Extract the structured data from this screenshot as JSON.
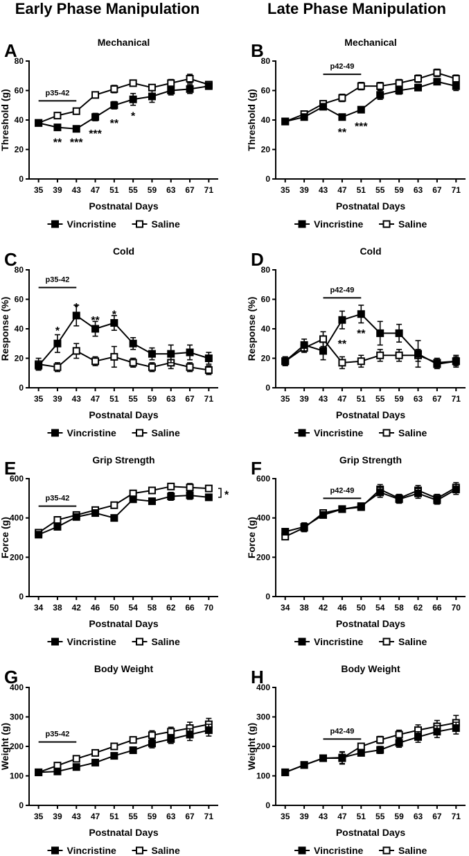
{
  "column_titles": [
    "Early Phase Manipulation",
    "Late Phase Manipulation"
  ],
  "legend": [
    "Vincristine",
    "Saline"
  ],
  "chart_data": [
    {
      "panel": "A",
      "type": "line",
      "title": "Mechanical",
      "xlabel": "Postnatal Days",
      "ylabel": "Threshold (g)",
      "ylim": [
        0,
        80
      ],
      "yticks": [
        0,
        20,
        40,
        60,
        80
      ],
      "x": [
        35,
        39,
        43,
        47,
        51,
        55,
        59,
        63,
        67,
        71
      ],
      "series": [
        {
          "name": "Vincristine",
          "values": [
            38,
            35,
            34,
            42,
            50,
            54,
            56,
            60,
            61,
            63
          ],
          "errors": [
            1.5,
            1.5,
            1.5,
            2.5,
            2.5,
            4,
            4,
            3,
            3,
            2
          ]
        },
        {
          "name": "Saline",
          "values": [
            38,
            43,
            46,
            57,
            61,
            65,
            62,
            65,
            68,
            64
          ],
          "errors": [
            1.5,
            1.5,
            1.5,
            1.5,
            2.5,
            2,
            1.5,
            2.5,
            3,
            2
          ]
        }
      ],
      "injection_label": "p35-42",
      "injection_bar": [
        35,
        43
      ],
      "injection_level": 53,
      "annotations": [
        {
          "x": 39,
          "y": 27,
          "text": "**"
        },
        {
          "x": 43,
          "y": 27,
          "text": "***"
        },
        {
          "x": 47,
          "y": 33,
          "text": "***"
        },
        {
          "x": 51,
          "y": 40,
          "text": "**"
        },
        {
          "x": 55,
          "y": 45,
          "text": "*"
        }
      ]
    },
    {
      "panel": "B",
      "type": "line",
      "title": "Mechanical",
      "xlabel": "Postnatal Days",
      "ylabel": "Threshold (g)",
      "ylim": [
        0,
        80
      ],
      "yticks": [
        0,
        20,
        40,
        60,
        80
      ],
      "x": [
        35,
        39,
        43,
        47,
        51,
        55,
        59,
        63,
        67,
        71
      ],
      "series": [
        {
          "name": "Vincristine",
          "values": [
            39,
            42,
            49,
            42,
            47,
            57,
            60,
            62,
            66,
            63
          ],
          "errors": [
            1.5,
            1.5,
            1.5,
            1.5,
            1.5,
            3,
            2.5,
            2,
            2,
            3
          ]
        },
        {
          "name": "Saline",
          "values": [
            39,
            44,
            51,
            55,
            63,
            63,
            65,
            68,
            72,
            68
          ],
          "errors": [
            1.5,
            1.5,
            2,
            2.5,
            2.5,
            2.5,
            2.5,
            2.5,
            2.5,
            2.5
          ]
        }
      ],
      "injection_label": "p42-49",
      "injection_bar": [
        43,
        51
      ],
      "injection_level": 71,
      "annotations": [
        {
          "x": 47,
          "y": 34,
          "text": "**"
        },
        {
          "x": 51,
          "y": 38,
          "text": "***"
        }
      ]
    },
    {
      "panel": "C",
      "type": "line",
      "title": "Cold",
      "xlabel": "Postnatal Days",
      "ylabel": "Response (%)",
      "ylim": [
        0,
        80
      ],
      "yticks": [
        0,
        20,
        40,
        60,
        80
      ],
      "x": [
        35,
        39,
        43,
        47,
        51,
        55,
        59,
        63,
        67,
        71
      ],
      "series": [
        {
          "name": "Vincristine",
          "values": [
            15,
            30,
            49,
            40,
            44,
            30,
            23,
            23,
            24,
            20
          ],
          "errors": [
            3,
            6,
            7,
            5,
            5,
            4,
            4,
            6,
            5,
            4
          ]
        },
        {
          "name": "Saline",
          "values": [
            16,
            14,
            25,
            18,
            21,
            17,
            14,
            17,
            14,
            12
          ],
          "errors": [
            4,
            3,
            5,
            3,
            7,
            3,
            3,
            4,
            3,
            3
          ]
        }
      ],
      "injection_label": "p35-42",
      "injection_bar": [
        35,
        43
      ],
      "injection_level": 68,
      "annotations": [
        {
          "x": 39,
          "y": 41,
          "text": "*"
        },
        {
          "x": 43,
          "y": 57,
          "text": "*"
        },
        {
          "x": 47,
          "y": 48,
          "text": "**"
        },
        {
          "x": 51,
          "y": 52,
          "text": "*"
        }
      ]
    },
    {
      "panel": "D",
      "type": "line",
      "title": "Cold",
      "xlabel": "Postnatal Days",
      "ylabel": "Response (%)",
      "ylim": [
        0,
        80
      ],
      "yticks": [
        0,
        20,
        40,
        60,
        80
      ],
      "x": [
        35,
        39,
        43,
        47,
        51,
        55,
        59,
        63,
        67,
        71
      ],
      "series": [
        {
          "name": "Vincristine",
          "values": [
            18,
            29,
            25,
            46,
            50,
            37,
            37,
            23,
            16,
            18
          ],
          "errors": [
            3,
            4,
            6,
            6,
            6,
            8,
            6,
            9,
            3,
            4
          ]
        },
        {
          "name": "Saline",
          "values": [
            18,
            27,
            33,
            17,
            18,
            22,
            22,
            22,
            17,
            18
          ],
          "errors": [
            3,
            3,
            5,
            4,
            4,
            4,
            4,
            4,
            3,
            3
          ]
        }
      ],
      "injection_label": "p42-49",
      "injection_bar": [
        43,
        51
      ],
      "injection_level": 61,
      "annotations": [
        {
          "x": 47,
          "y": 32,
          "text": "**"
        },
        {
          "x": 51,
          "y": 39,
          "text": "**"
        }
      ]
    },
    {
      "panel": "E",
      "type": "line",
      "title": "Grip Strength",
      "xlabel": "Postnatal Days",
      "ylabel": "Force (g)",
      "ylim": [
        0,
        600
      ],
      "yticks": [
        0,
        200,
        400,
        600
      ],
      "x": [
        34,
        38,
        42,
        46,
        50,
        54,
        58,
        62,
        66,
        70
      ],
      "series": [
        {
          "name": "Vincristine",
          "values": [
            315,
            355,
            405,
            425,
            400,
            495,
            485,
            510,
            515,
            505
          ],
          "errors": [
            10,
            12,
            12,
            12,
            10,
            15,
            15,
            20,
            20,
            15
          ]
        },
        {
          "name": "Saline",
          "values": [
            325,
            390,
            415,
            440,
            465,
            525,
            540,
            560,
            555,
            550
          ],
          "errors": [
            10,
            12,
            12,
            12,
            10,
            15,
            15,
            15,
            20,
            15
          ]
        }
      ],
      "injection_label": "p35-42",
      "injection_bar": [
        34,
        42
      ],
      "injection_level": 460,
      "significance": {
        "text": "*",
        "between": [
          505,
          550
        ]
      }
    },
    {
      "panel": "F",
      "type": "line",
      "title": "Grip Strength",
      "xlabel": "Postnatal Days",
      "ylabel": "Force (g)",
      "ylim": [
        0,
        600
      ],
      "yticks": [
        0,
        200,
        400,
        600
      ],
      "x": [
        34,
        38,
        42,
        46,
        50,
        54,
        58,
        62,
        66,
        70
      ],
      "series": [
        {
          "name": "Vincristine",
          "values": [
            330,
            355,
            415,
            445,
            460,
            530,
            495,
            525,
            490,
            545
          ],
          "errors": [
            15,
            20,
            15,
            15,
            15,
            25,
            20,
            25,
            20,
            25
          ]
        },
        {
          "name": "Saline",
          "values": [
            305,
            350,
            425,
            445,
            455,
            545,
            500,
            540,
            500,
            555
          ],
          "errors": [
            15,
            20,
            15,
            15,
            15,
            25,
            20,
            25,
            20,
            25
          ]
        }
      ],
      "injection_label": "p42-49",
      "injection_bar": [
        42,
        50
      ],
      "injection_level": 500
    },
    {
      "panel": "G",
      "type": "line",
      "title": "Body Weight",
      "xlabel": "Postnatal Days",
      "ylabel": "Weight (g)",
      "ylim": [
        0,
        400
      ],
      "yticks": [
        0,
        100,
        200,
        300,
        400
      ],
      "x": [
        35,
        39,
        43,
        47,
        51,
        55,
        59,
        63,
        67,
        71
      ],
      "series": [
        {
          "name": "Vincristine",
          "values": [
            112,
            115,
            130,
            145,
            168,
            187,
            210,
            225,
            240,
            255
          ],
          "errors": [
            5,
            5,
            5,
            6,
            8,
            10,
            15,
            15,
            20,
            20
          ]
        },
        {
          "name": "Saline",
          "values": [
            112,
            135,
            158,
            178,
            200,
            222,
            238,
            250,
            262,
            275
          ],
          "errors": [
            5,
            5,
            6,
            6,
            8,
            10,
            15,
            15,
            20,
            20
          ]
        }
      ],
      "injection_label": "p35-42",
      "injection_bar": [
        35,
        43
      ],
      "injection_level": 215
    },
    {
      "panel": "H",
      "type": "line",
      "title": "Body Weight",
      "xlabel": "Postnatal Days",
      "ylabel": "Weight (g)",
      "ylim": [
        0,
        400
      ],
      "yticks": [
        0,
        100,
        200,
        300,
        400
      ],
      "x": [
        35,
        39,
        43,
        47,
        51,
        55,
        59,
        63,
        67,
        71
      ],
      "series": [
        {
          "name": "Vincristine",
          "values": [
            112,
            137,
            160,
            162,
            178,
            188,
            212,
            232,
            250,
            262
          ],
          "errors": [
            5,
            5,
            6,
            20,
            8,
            12,
            15,
            18,
            20,
            20
          ]
        },
        {
          "name": "Saline",
          "values": [
            112,
            137,
            160,
            160,
            200,
            222,
            240,
            255,
            268,
            280
          ],
          "errors": [
            5,
            5,
            6,
            20,
            10,
            12,
            15,
            18,
            20,
            25
          ]
        }
      ],
      "injection_label": "p42-49",
      "injection_bar": [
        43,
        51
      ],
      "injection_level": 225
    }
  ]
}
